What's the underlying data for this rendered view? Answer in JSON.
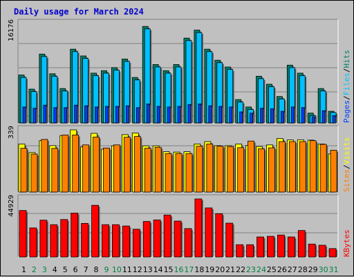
{
  "title": "Daily usage for March 2024",
  "colors": {
    "hits": "#00806b",
    "files": "#00c0ff",
    "pages": "#0040ff",
    "visits": "#ffff00",
    "sites": "#ff8000",
    "kbytes": "#ff0000",
    "slash": "#000000",
    "weekday": "#000000",
    "weekend": "#008040"
  },
  "chart_data": [
    {
      "type": "bar",
      "name": "hits-files-pages",
      "ymax_label": "16176",
      "ylim": [
        0,
        16176
      ],
      "legend": [
        "Pages",
        "/",
        "Files",
        "/",
        "Hits"
      ],
      "categories": [
        "1",
        "2",
        "3",
        "4",
        "5",
        "6",
        "7",
        "8",
        "9",
        "10",
        "11",
        "12",
        "13",
        "14",
        "15",
        "16",
        "17",
        "18",
        "19",
        "20",
        "21",
        "22",
        "23",
        "24",
        "25",
        "26",
        "27",
        "28",
        "29",
        "30",
        "31"
      ],
      "weekend": [
        false,
        true,
        true,
        false,
        false,
        false,
        false,
        false,
        true,
        true,
        false,
        false,
        false,
        false,
        false,
        true,
        true,
        false,
        false,
        false,
        false,
        false,
        true,
        true,
        false,
        false,
        false,
        false,
        false,
        true,
        true
      ],
      "series": [
        {
          "name": "Hits",
          "values": [
            7800,
            5500,
            11200,
            8000,
            5600,
            12000,
            10900,
            8100,
            8500,
            9000,
            10400,
            7400,
            15700,
            9500,
            8500,
            9500,
            13800,
            15100,
            12000,
            10200,
            9100,
            3800,
            2600,
            7600,
            6300,
            4300,
            9400,
            8100,
            1600,
            5600,
            1900
          ]
        },
        {
          "name": "Files",
          "values": [
            7400,
            5100,
            10800,
            7600,
            5200,
            11600,
            10500,
            7700,
            8100,
            8600,
            10000,
            7000,
            15300,
            9100,
            8100,
            9100,
            13400,
            14700,
            11600,
            9800,
            8700,
            3400,
            2200,
            7200,
            5900,
            3900,
            9000,
            7700,
            1200,
            5200,
            1700
          ]
        },
        {
          "name": "Pages",
          "values": [
            2600,
            2400,
            2900,
            2500,
            2500,
            2900,
            2800,
            2600,
            2700,
            2700,
            2800,
            2500,
            3100,
            2700,
            2600,
            2700,
            3000,
            3100,
            2800,
            2700,
            2600,
            1800,
            1600,
            2400,
            2300,
            1900,
            2600,
            2500,
            1000,
            2000,
            1200
          ]
        }
      ]
    },
    {
      "type": "bar",
      "name": "visits-sites",
      "ymax_label": "339",
      "ylim": [
        0,
        339
      ],
      "legend": [
        "Sites",
        "/",
        "Visits"
      ],
      "series": [
        {
          "name": "Visits",
          "values": [
            262,
            215,
            280,
            253,
            308,
            339,
            246,
            320,
            234,
            252,
            313,
            322,
            252,
            252,
            220,
            218,
            220,
            262,
            275,
            253,
            253,
            262,
            254,
            248,
            257,
            292,
            284,
            285,
            283,
            262,
            208
          ]
        },
        {
          "name": "Sites",
          "values": [
            239,
            207,
            287,
            238,
            311,
            311,
            257,
            300,
            240,
            257,
            299,
            303,
            239,
            244,
            210,
            210,
            210,
            250,
            262,
            250,
            248,
            242,
            278,
            236,
            241,
            275,
            275,
            275,
            280,
            260,
            228
          ]
        }
      ]
    },
    {
      "type": "bar",
      "name": "kbytes",
      "ymax_label": "44929",
      "ylim": [
        0,
        44929
      ],
      "legend": [
        "KBytes"
      ],
      "series": [
        {
          "name": "KBytes",
          "values": [
            36000,
            22500,
            28500,
            25000,
            29000,
            34000,
            26000,
            40000,
            25000,
            25000,
            24000,
            21500,
            27500,
            28700,
            32500,
            27800,
            22000,
            44929,
            38000,
            33500,
            26200,
            9500,
            9500,
            15500,
            16000,
            17000,
            15500,
            20500,
            10000,
            9100,
            6500
          ]
        }
      ]
    }
  ]
}
